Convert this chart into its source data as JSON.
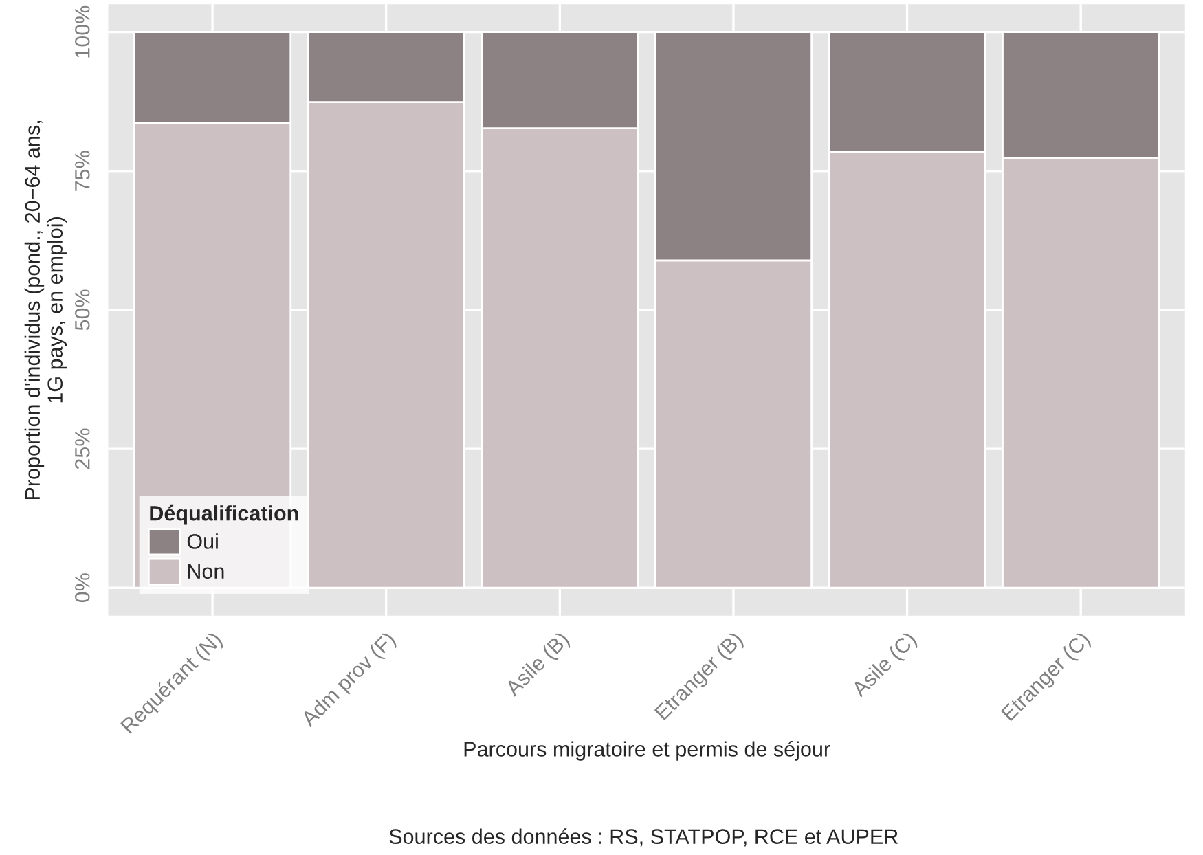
{
  "chart_data": {
    "type": "bar",
    "stacked": true,
    "categories": [
      "Requérant (N)",
      "Adm prov (F)",
      "Asile (B)",
      "Etranger (B)",
      "Asile (C)",
      "Etranger (C)"
    ],
    "series": [
      {
        "name": "Non",
        "color": "#ccc0c3",
        "values": [
          83.6,
          87.4,
          82.7,
          58.9,
          78.4,
          77.4
        ]
      },
      {
        "name": "Oui",
        "color": "#8c8183",
        "values": [
          16.4,
          12.6,
          17.3,
          41.1,
          21.6,
          22.6
        ]
      }
    ],
    "ylim": [
      -5,
      105
    ],
    "yticks": [
      {
        "value": 0,
        "label": "0%"
      },
      {
        "value": 25,
        "label": "25%"
      },
      {
        "value": 50,
        "label": "50%"
      },
      {
        "value": 75,
        "label": "75%"
      },
      {
        "value": 100,
        "label": "100%"
      }
    ],
    "xlabel": "Parcours migratoire et permis de séjour",
    "ylabel": "Proportion d'individus (pond., 20−64 ans,\n1G pays, en emploi)",
    "legend_title": "Déqualification",
    "legend": "bottom left",
    "grid": true,
    "annotations": [
      "Sources des données : RS, STATPOP, RCE et AUPER"
    ]
  }
}
